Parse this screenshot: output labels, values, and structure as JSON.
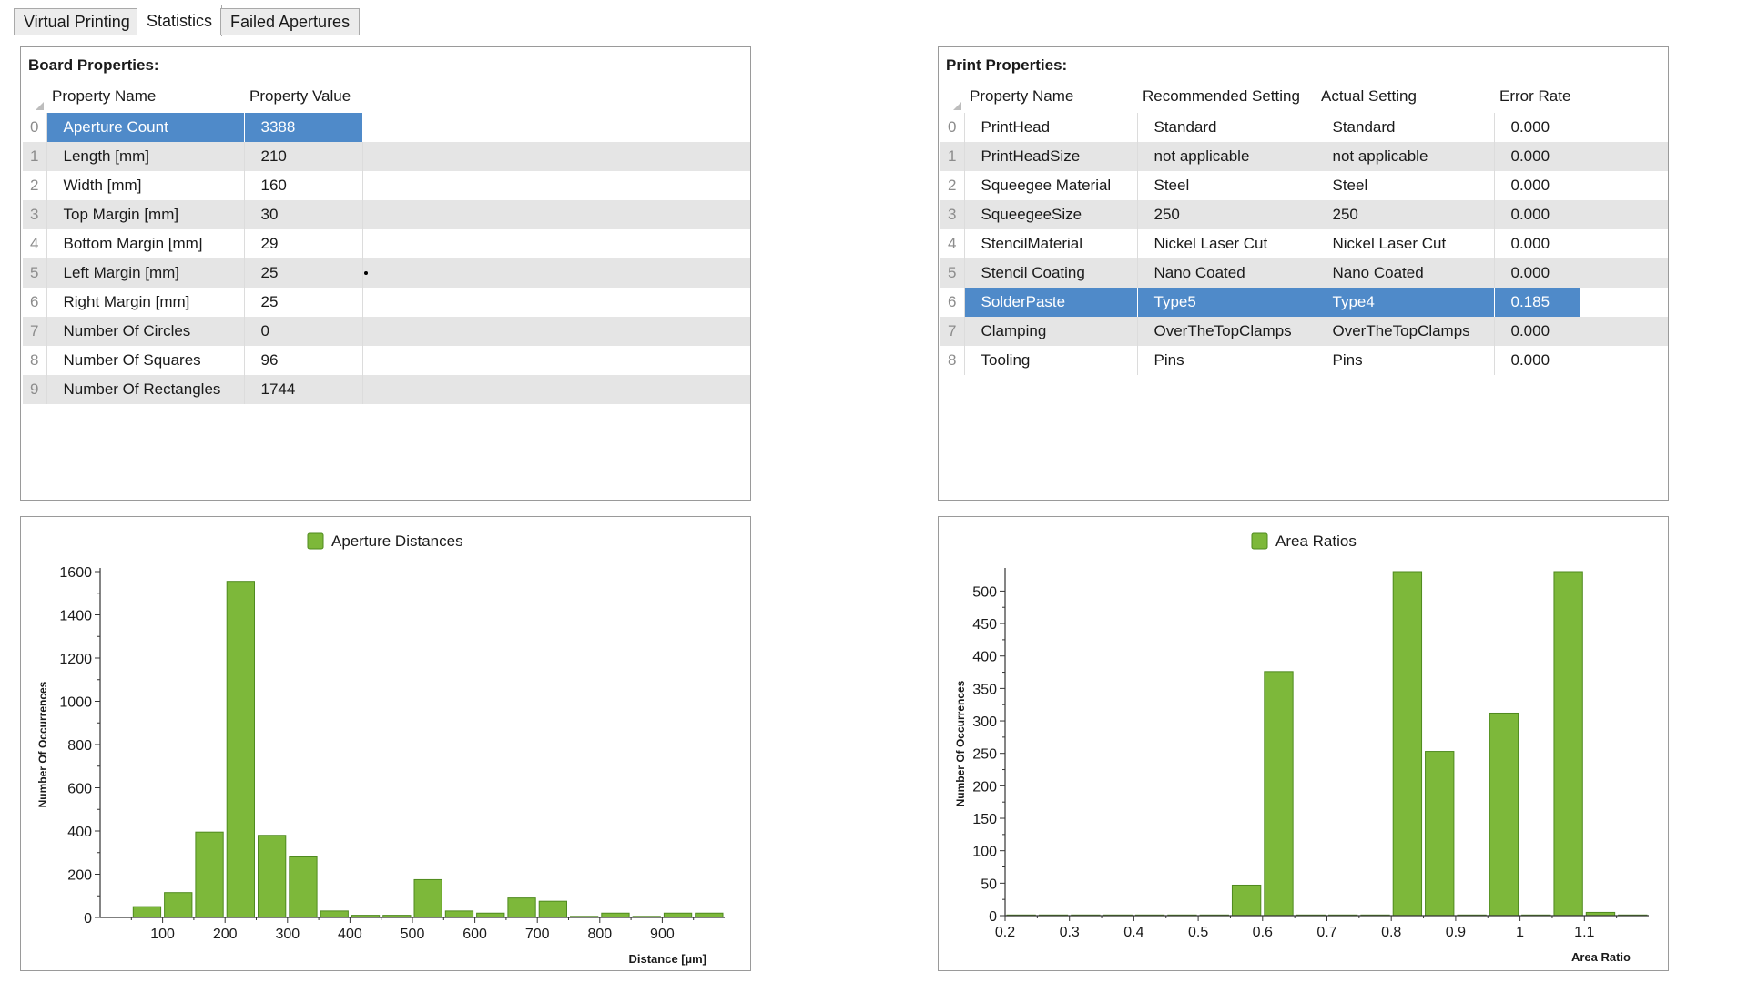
{
  "tabs": [
    {
      "label": "Virtual Printing",
      "active": false
    },
    {
      "label": "Statistics",
      "active": true
    },
    {
      "label": "Failed Apertures",
      "active": false
    }
  ],
  "board": {
    "title": "Board Properties:",
    "headers": [
      "Property Name",
      "Property Value"
    ],
    "selected_index": 0,
    "rows": [
      {
        "index": "0",
        "name": "Aperture Count",
        "value": "3388"
      },
      {
        "index": "1",
        "name": "Length [mm]",
        "value": "210"
      },
      {
        "index": "2",
        "name": "Width [mm]",
        "value": "160"
      },
      {
        "index": "3",
        "name": "Top Margin [mm]",
        "value": "30"
      },
      {
        "index": "4",
        "name": "Bottom Margin [mm]",
        "value": "29"
      },
      {
        "index": "5",
        "name": "Left Margin [mm]",
        "value": "25"
      },
      {
        "index": "6",
        "name": "Right Margin [mm]",
        "value": "25"
      },
      {
        "index": "7",
        "name": "Number Of Circles",
        "value": "0"
      },
      {
        "index": "8",
        "name": "Number Of Squares",
        "value": "96"
      },
      {
        "index": "9",
        "name": "Number Of Rectangles",
        "value": "1744"
      }
    ]
  },
  "print": {
    "title": "Print Properties:",
    "headers": [
      "Property Name",
      "Recommended Setting",
      "Actual Setting",
      "Error Rate"
    ],
    "selected_index": 6,
    "rows": [
      {
        "index": "0",
        "name": "PrintHead",
        "recommended": "Standard",
        "actual": "Standard",
        "error": "0.000"
      },
      {
        "index": "1",
        "name": "PrintHeadSize",
        "recommended": "not applicable",
        "actual": "not applicable",
        "error": "0.000"
      },
      {
        "index": "2",
        "name": "Squeegee Material",
        "recommended": "Steel",
        "actual": "Steel",
        "error": "0.000"
      },
      {
        "index": "3",
        "name": "SqueegeeSize",
        "recommended": "250",
        "actual": "250",
        "error": "0.000"
      },
      {
        "index": "4",
        "name": "StencilMaterial",
        "recommended": "Nickel Laser Cut",
        "actual": "Nickel Laser Cut",
        "error": "0.000"
      },
      {
        "index": "5",
        "name": "Stencil Coating",
        "recommended": "Nano Coated",
        "actual": "Nano Coated",
        "error": "0.000"
      },
      {
        "index": "6",
        "name": "SolderPaste",
        "recommended": "Type5",
        "actual": "Type4",
        "error": "0.185"
      },
      {
        "index": "7",
        "name": "Clamping",
        "recommended": "OverTheTopClamps",
        "actual": "OverTheTopClamps",
        "error": "0.000"
      },
      {
        "index": "8",
        "name": "Tooling",
        "recommended": "Pins",
        "actual": "Pins",
        "error": "0.000"
      }
    ]
  },
  "colors": {
    "bar": "#7db83a",
    "bar_edge": "#4f8a1f",
    "selection": "#4f8ac9"
  },
  "chart_data": [
    {
      "type": "bar",
      "title": "",
      "legend": {
        "label": "Aperture Distances",
        "placement": "top-center"
      },
      "series": [
        {
          "name": "Aperture Distances"
        }
      ],
      "xlabel": "Distance [µm]",
      "ylabel": "Number Of Occurrences",
      "xlim": [
        0,
        1000
      ],
      "ylim": [
        0,
        1600
      ],
      "xticks": [
        100,
        200,
        300,
        400,
        500,
        600,
        700,
        800,
        900
      ],
      "yticks": [
        0,
        200,
        400,
        600,
        800,
        1000,
        1200,
        1400,
        1600
      ],
      "bin_width": 50,
      "x": [
        75,
        125,
        175,
        225,
        275,
        325,
        375,
        425,
        475,
        525,
        575,
        625,
        675,
        725,
        775,
        825,
        875,
        925,
        975
      ],
      "values": [
        50,
        115,
        395,
        1555,
        380,
        280,
        30,
        10,
        10,
        175,
        30,
        20,
        90,
        75,
        5,
        20,
        5,
        20,
        20
      ],
      "grid": false
    },
    {
      "type": "bar",
      "title": "",
      "legend": {
        "label": "Area Ratios",
        "placement": "top-center"
      },
      "series": [
        {
          "name": "Area Ratios"
        }
      ],
      "xlabel": "Area Ratio",
      "ylabel": "Number Of Occurrences",
      "xlim": [
        0.2,
        1.2
      ],
      "ylim": [
        0,
        530
      ],
      "xticks": [
        0.2,
        0.3,
        0.4,
        0.5,
        0.6,
        0.7,
        0.8,
        0.9,
        1,
        1.1
      ],
      "yticks": [
        0,
        50,
        100,
        150,
        200,
        250,
        300,
        350,
        400,
        450,
        500
      ],
      "bin_width": 0.05,
      "x": [
        0.225,
        0.275,
        0.325,
        0.375,
        0.425,
        0.475,
        0.525,
        0.575,
        0.625,
        0.675,
        0.725,
        0.775,
        0.825,
        0.875,
        0.925,
        0.975,
        1.025,
        1.075,
        1.125,
        1.175
      ],
      "values": [
        1,
        1,
        1,
        1,
        1,
        1,
        1,
        47,
        376,
        1,
        1,
        1,
        530,
        253,
        1,
        312,
        1,
        530,
        5,
        1
      ],
      "grid": false
    }
  ]
}
